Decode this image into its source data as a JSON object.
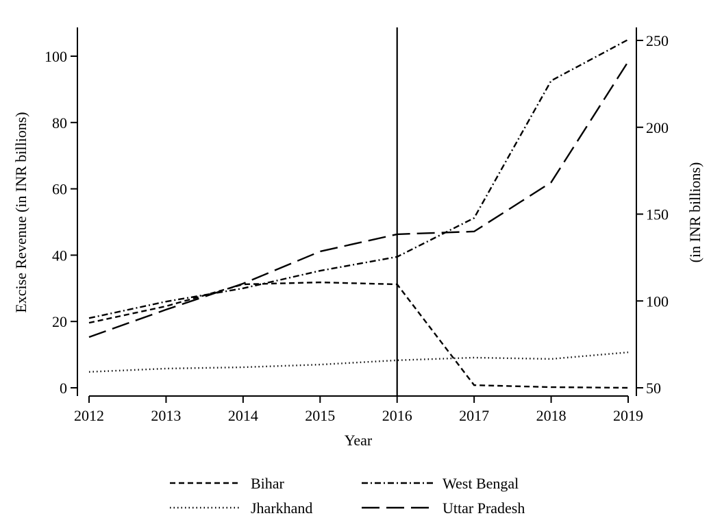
{
  "chart_data": {
    "type": "line",
    "title": "",
    "xlabel": "Year",
    "ylabel": "Excise Revenue (in INR billions)",
    "y2label": "(in INR billions)",
    "x": [
      2012,
      2013,
      2014,
      2015,
      2016,
      2017,
      2018,
      2019
    ],
    "xlim": [
      2012,
      2019
    ],
    "ylim": [
      0,
      108
    ],
    "y2lim": [
      45,
      253
    ],
    "yticks": [
      0,
      20,
      40,
      60,
      80,
      100
    ],
    "y2ticks": [
      50,
      100,
      150,
      200,
      250
    ],
    "vline": 2016,
    "grid": false,
    "legend_placement": "bottom",
    "series": [
      {
        "name": "Bihar",
        "axis": "left",
        "dash": "8,5",
        "values": [
          19.6,
          24.6,
          31.2,
          31.8,
          31.2,
          0.8,
          0.2,
          0.0
        ]
      },
      {
        "name": "West Bengal",
        "axis": "left",
        "dash": "9,4,2,4",
        "values": [
          21.0,
          26.0,
          30.0,
          35.3,
          39.5,
          51.2,
          92.6,
          105.0
        ]
      },
      {
        "name": "Jharkhand",
        "axis": "left",
        "dash": "1.5,4",
        "values": [
          4.8,
          5.8,
          6.2,
          7.0,
          8.3,
          9.1,
          8.7,
          10.7
        ]
      },
      {
        "name": "Uttar Pradesh",
        "axis": "right",
        "dash": "26,10",
        "values": [
          79.2,
          95.0,
          110.0,
          128.5,
          138.4,
          140.0,
          168.3,
          237.8
        ]
      }
    ],
    "legend_order": [
      "Bihar",
      "West Bengal",
      "Jharkhand",
      "Uttar Pradesh"
    ]
  }
}
